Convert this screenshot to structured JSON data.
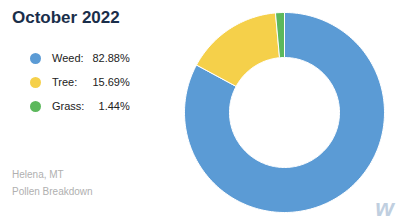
{
  "chart_data": {
    "type": "pie",
    "title": "October 2022",
    "categories": [
      "Weed:",
      "Tree:",
      "Grass:"
    ],
    "values": [
      82.88,
      15.69,
      1.44
    ],
    "value_labels": [
      "82.88%",
      "15.69%",
      "1.44%"
    ],
    "colors": [
      "#5b9bd5",
      "#f5d04a",
      "#5cb85c"
    ],
    "legend": "left",
    "annotations": [
      "Helena, MT",
      "Pollen Breakdown",
      "w"
    ]
  }
}
